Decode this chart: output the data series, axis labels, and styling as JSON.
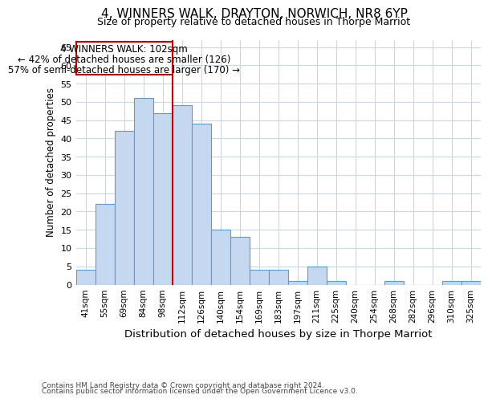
{
  "title1": "4, WINNERS WALK, DRAYTON, NORWICH, NR8 6YP",
  "title2": "Size of property relative to detached houses in Thorpe Marriot",
  "xlabel": "Distribution of detached houses by size in Thorpe Marriot",
  "ylabel": "Number of detached properties",
  "footer1": "Contains HM Land Registry data © Crown copyright and database right 2024.",
  "footer2": "Contains public sector information licensed under the Open Government Licence v3.0.",
  "annotation_line1": "4 WINNERS WALK: 102sqm",
  "annotation_line2": "← 42% of detached houses are smaller (126)",
  "annotation_line3": "57% of semi-detached houses are larger (170) →",
  "bar_color": "#c5d8f0",
  "bar_edge_color": "#5b9bd5",
  "vline_color": "#cc0000",
  "vline_x_idx": 4,
  "categories": [
    "41sqm",
    "55sqm",
    "69sqm",
    "84sqm",
    "98sqm",
    "112sqm",
    "126sqm",
    "140sqm",
    "154sqm",
    "169sqm",
    "183sqm",
    "197sqm",
    "211sqm",
    "225sqm",
    "240sqm",
    "254sqm",
    "268sqm",
    "282sqm",
    "296sqm",
    "310sqm",
    "325sqm"
  ],
  "values": [
    4,
    22,
    42,
    51,
    47,
    49,
    44,
    15,
    13,
    4,
    4,
    1,
    5,
    1,
    0,
    0,
    1,
    0,
    0,
    1,
    1
  ],
  "ylim": [
    0,
    67
  ],
  "yticks": [
    0,
    5,
    10,
    15,
    20,
    25,
    30,
    35,
    40,
    45,
    50,
    55,
    60,
    65
  ],
  "background_color": "#ffffff",
  "grid_color": "#c8d8e8",
  "title1_fontsize": 11,
  "title2_fontsize": 9,
  "xlabel_fontsize": 9.5,
  "ylabel_fontsize": 8.5,
  "tick_fontsize": 8,
  "xtick_fontsize": 7.5,
  "footer_fontsize": 6.5,
  "annot_fontsize": 8.5
}
